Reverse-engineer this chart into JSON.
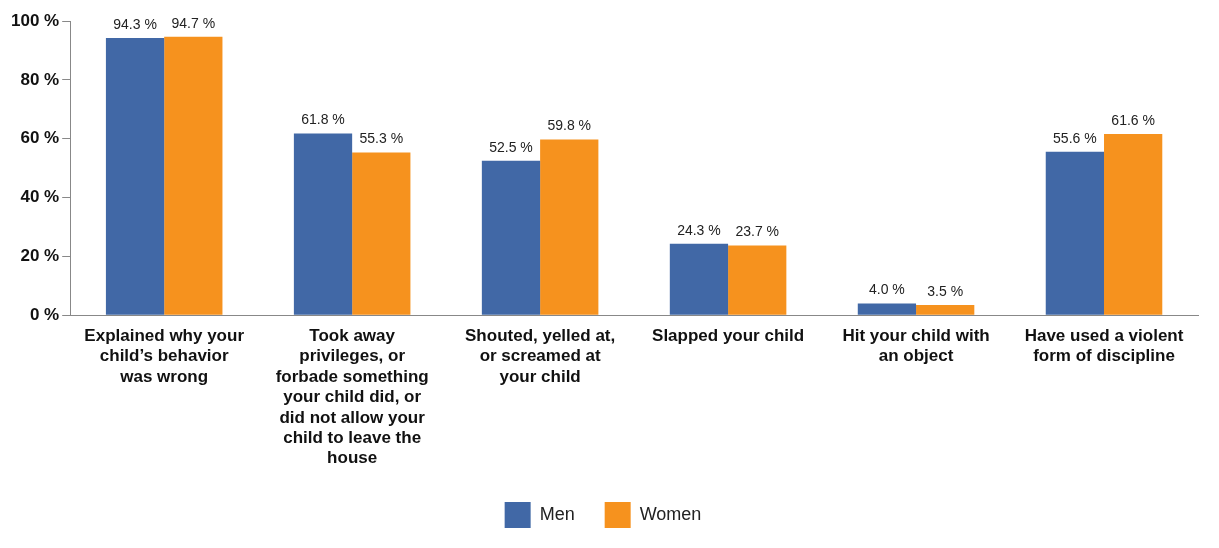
{
  "chart_data": {
    "type": "bar",
    "categories": [
      "Explained why your child’s behavior was wrong",
      "Took away privileges, or forbade something your child did, or did not allow your child to leave the house",
      "Shouted, yelled at, or screamed at your child",
      "Slapped your child",
      "Hit your child with an object",
      "Have used a violent form of discipline"
    ],
    "series": [
      {
        "name": "Men",
        "color": "#4168a6",
        "values": [
          94.3,
          61.8,
          52.5,
          24.3,
          4.0,
          55.6
        ],
        "value_labels": [
          "94.3 %",
          "61.8 %",
          "52.5 %",
          "24.3 %",
          "4.0 %",
          "55.6 %"
        ]
      },
      {
        "name": "Women",
        "color": "#f6921e",
        "values": [
          94.7,
          55.3,
          59.8,
          23.7,
          3.5,
          61.6
        ],
        "value_labels": [
          "94.7 %",
          "55.3 %",
          "59.8 %",
          "23.7 %",
          "3.5 %",
          "61.6 %"
        ]
      }
    ],
    "ylim": [
      0,
      100
    ],
    "yticks": [
      {
        "value": 0,
        "label": "0 %"
      },
      {
        "value": 20,
        "label": "20 %"
      },
      {
        "value": 40,
        "label": "40 %"
      },
      {
        "value": 60,
        "label": "60 %"
      },
      {
        "value": 80,
        "label": "80 %"
      },
      {
        "value": 100,
        "label": "100 %"
      }
    ],
    "legend": "bottom"
  }
}
